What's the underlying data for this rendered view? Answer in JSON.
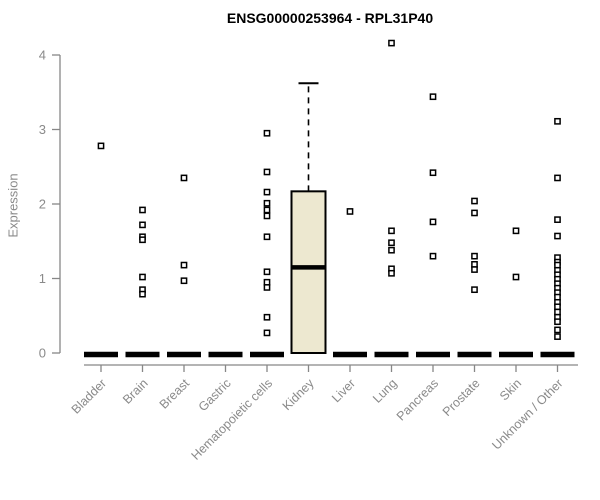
{
  "title": "ENSG00000253964 - RPL31P40",
  "ylabel": "Expression",
  "colors": {
    "axis": "#878787",
    "tick_label": "#8a8a8a",
    "title": "#000000",
    "box_fill": "#EDE8D0",
    "box_stroke": "#000000",
    "outlier_stroke": "#000000",
    "background": "#ffffff"
  },
  "chart_data": {
    "type": "boxplot",
    "title": "ENSG00000253964 - RPL31P40",
    "xlabel": "",
    "ylabel": "Expression",
    "ylim": [
      0,
      4
    ],
    "yticks": [
      0,
      1,
      2,
      3,
      4
    ],
    "grid": false,
    "legend": false,
    "categories": [
      "Bladder",
      "Brain",
      "Breast",
      "Gastric",
      "Hematopoietic cells",
      "Kidney",
      "Liver",
      "Lung",
      "Pancreas",
      "Prostate",
      "Skin",
      "Unknown / Other"
    ],
    "boxes": [
      {
        "category": "Bladder",
        "median": 0,
        "q1": 0,
        "q3": 0,
        "whisker_low": 0,
        "whisker_high": 0,
        "outliers": [
          2.78
        ]
      },
      {
        "category": "Brain",
        "median": 0,
        "q1": 0,
        "q3": 0,
        "whisker_low": 0,
        "whisker_high": 0,
        "outliers": [
          1.92,
          1.72,
          1.56,
          1.52,
          1.02,
          0.85,
          0.79
        ]
      },
      {
        "category": "Breast",
        "median": 0,
        "q1": 0,
        "q3": 0,
        "whisker_low": 0,
        "whisker_high": 0,
        "outliers": [
          2.35,
          1.18,
          0.97
        ]
      },
      {
        "category": "Gastric",
        "median": 0,
        "q1": 0,
        "q3": 0,
        "whisker_low": 0,
        "whisker_high": 0,
        "outliers": []
      },
      {
        "category": "Hematopoietic cells",
        "median": 0,
        "q1": 0,
        "q3": 0,
        "whisker_low": 0,
        "whisker_high": 0,
        "outliers": [
          2.95,
          2.43,
          2.16,
          2.01,
          1.92,
          1.84,
          1.56,
          1.09,
          0.95,
          0.88,
          0.48,
          0.27
        ]
      },
      {
        "category": "Kidney",
        "median": 1.15,
        "q1": 0,
        "q3": 2.17,
        "whisker_low": 0,
        "whisker_high": 3.62,
        "outliers": []
      },
      {
        "category": "Liver",
        "median": 0,
        "q1": 0,
        "q3": 0,
        "whisker_low": 0,
        "whisker_high": 0,
        "outliers": [
          1.9
        ]
      },
      {
        "category": "Lung",
        "median": 0,
        "q1": 0,
        "q3": 0,
        "whisker_low": 0,
        "whisker_high": 0,
        "outliers": [
          4.16,
          1.64,
          1.48,
          1.38,
          1.13,
          1.07
        ]
      },
      {
        "category": "Pancreas",
        "median": 0,
        "q1": 0,
        "q3": 0,
        "whisker_low": 0,
        "whisker_high": 0,
        "outliers": [
          3.44,
          2.42,
          1.76,
          1.3
        ]
      },
      {
        "category": "Prostate",
        "median": 0,
        "q1": 0,
        "q3": 0,
        "whisker_low": 0,
        "whisker_high": 0,
        "outliers": [
          2.04,
          1.88,
          1.3,
          1.19,
          1.12,
          0.85
        ]
      },
      {
        "category": "Skin",
        "median": 0,
        "q1": 0,
        "q3": 0,
        "whisker_low": 0,
        "whisker_high": 0,
        "outliers": [
          1.64,
          1.02
        ]
      },
      {
        "category": "Unknown / Other",
        "median": 0,
        "q1": 0,
        "q3": 0,
        "whisker_low": 0,
        "whisker_high": 0,
        "outliers": [
          3.11,
          2.35,
          1.79,
          1.57,
          1.28,
          1.22,
          1.18,
          1.11,
          1.05,
          0.99,
          0.93,
          0.87,
          0.81,
          0.75,
          0.68,
          0.62,
          0.55,
          0.48,
          0.42,
          0.31,
          0.22
        ]
      }
    ]
  }
}
